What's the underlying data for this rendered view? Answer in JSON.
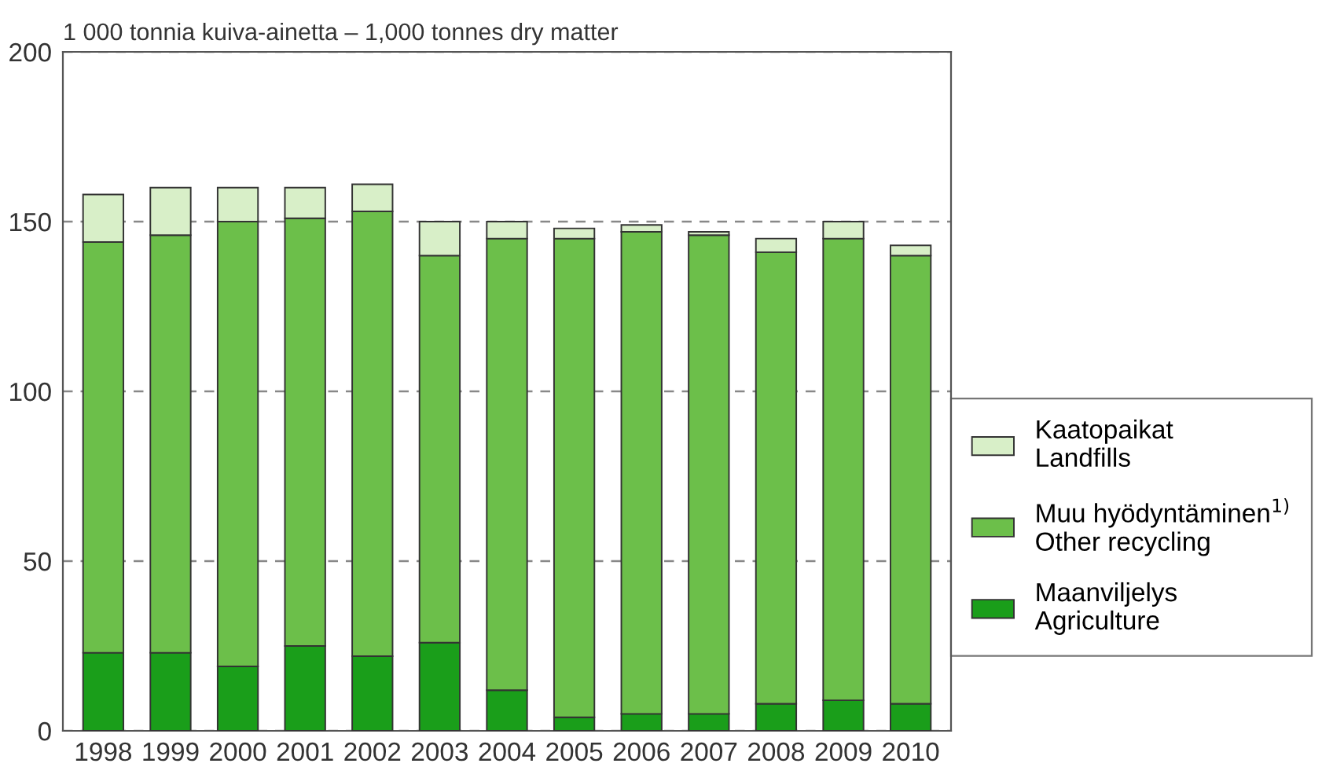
{
  "chart_data": {
    "type": "bar",
    "stacked": true,
    "title": "1 000 tonnia kuiva-ainetta – 1,000 tonnes dry matter",
    "categories": [
      "1998",
      "1999",
      "2000",
      "2001",
      "2002",
      "2003",
      "2004",
      "2005",
      "2006",
      "2007",
      "2008",
      "2009",
      "2010"
    ],
    "series": [
      {
        "name": "Maanviljelys\nAgriculture",
        "color": "#1a9e1a",
        "values": [
          23,
          23,
          19,
          25,
          22,
          26,
          12,
          4,
          5,
          5,
          8,
          9,
          8
        ]
      },
      {
        "name": "Muu hyödyntäminen$^{1)}$\nOther recycling",
        "color": "#6cbf4a",
        "values": [
          121,
          123,
          131,
          126,
          131,
          114,
          133,
          141,
          142,
          141,
          133,
          136,
          132
        ]
      },
      {
        "name": "Kaatopaikat\nLandfills",
        "color": "#d8efc8",
        "values": [
          14,
          14,
          10,
          9,
          8,
          10,
          5,
          3,
          2,
          1,
          4,
          5,
          3
        ]
      }
    ],
    "ylim": [
      0,
      200
    ],
    "yticks": [
      0,
      50,
      100,
      150,
      200
    ],
    "grid": "y",
    "legend": "right"
  }
}
